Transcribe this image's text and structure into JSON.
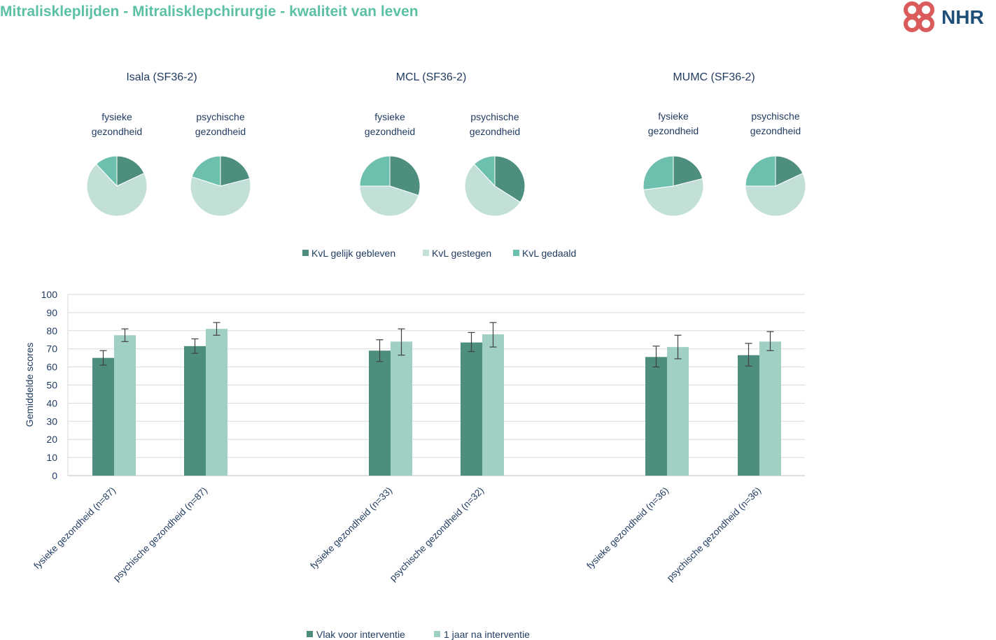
{
  "page": {
    "title": "Mitraliskleplijden - Mitralisklepchirurgie - kwaliteit van leven",
    "logo_text": "NHR"
  },
  "colors": {
    "dark": "#4d8e7e",
    "light": "#c3e0d8",
    "medium": "#6ec0ae",
    "bar_light": "#a0d0c4",
    "title": "#5cc0a5",
    "text": "#1f3a5f",
    "logo_red": "#d95b5b",
    "logo_blue": "#1f4e79"
  },
  "chart_data": [
    {
      "type": "pie",
      "group_titles": [
        "Isala (SF36-2)",
        "MCL (SF36-2)",
        "MUMC (SF36-2)"
      ],
      "pie_label_lines": [
        [
          "fysieke",
          "gezondheid"
        ],
        [
          "psychische",
          "gezondheid"
        ]
      ],
      "legend": [
        "KvL gelijk gebleven",
        "KvL gestegen",
        "KvL gedaald"
      ],
      "pies": [
        {
          "group": 0,
          "label": 0,
          "values": [
            18,
            70,
            12
          ]
        },
        {
          "group": 0,
          "label": 1,
          "values": [
            21,
            59,
            20
          ]
        },
        {
          "group": 1,
          "label": 0,
          "values": [
            30,
            45,
            25
          ]
        },
        {
          "group": 1,
          "label": 1,
          "values": [
            34,
            54,
            12
          ]
        },
        {
          "group": 2,
          "label": 0,
          "values": [
            21,
            52,
            27
          ]
        },
        {
          "group": 2,
          "label": 1,
          "values": [
            18,
            57,
            25
          ]
        }
      ]
    },
    {
      "type": "bar",
      "ylabel": "Gemiddelde scores",
      "ylim": [
        0,
        100
      ],
      "yticks": [
        0,
        10,
        20,
        30,
        40,
        50,
        60,
        70,
        80,
        90,
        100
      ],
      "grid": true,
      "legend_position": "bottom",
      "categories": [
        "fysieke gezondheid (n=87)",
        "psychische gezondheid (n=87)",
        "fysieke gezondheid (n=33)",
        "psychische gezondheid (n=32)",
        "fysieke gezondheid (n=36)",
        "psychische gezondheid (n=36)"
      ],
      "series": [
        {
          "name": "Vlak voor interventie",
          "values": [
            65,
            71.5,
            69,
            73.5,
            65.5,
            66.5
          ],
          "err_low": [
            61,
            67.5,
            63,
            68.5,
            60,
            60.5
          ],
          "err_high": [
            69,
            75.5,
            75,
            79,
            71.5,
            73
          ]
        },
        {
          "name": "1 jaar na interventie",
          "values": [
            77.5,
            81,
            74,
            78,
            71,
            74
          ],
          "err_low": [
            74,
            77.5,
            66.5,
            71,
            64.5,
            69
          ],
          "err_high": [
            81,
            84.5,
            81,
            84.5,
            77.5,
            79.5
          ]
        }
      ]
    }
  ]
}
